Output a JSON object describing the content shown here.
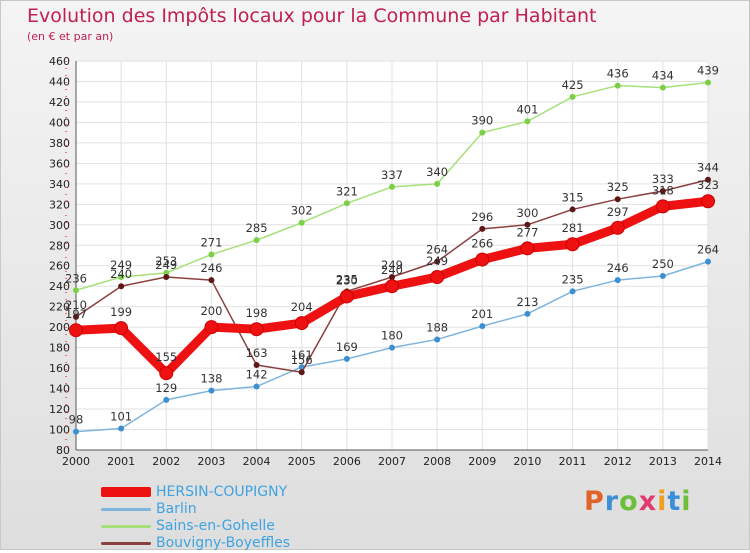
{
  "chart_data": {
    "type": "line",
    "title": "Evolution des Impôts locaux pour la Commune par Habitant",
    "subtitle": "(en € et par an)",
    "categories": [
      "2000",
      "2001",
      "2002",
      "2003",
      "2004",
      "2005",
      "2006",
      "2007",
      "2008",
      "2009",
      "2010",
      "2011",
      "2012",
      "2013",
      "2014"
    ],
    "y_ticks": [
      80,
      100,
      120,
      140,
      160,
      180,
      200,
      220,
      240,
      260,
      280,
      300,
      320,
      340,
      360,
      380,
      400,
      420,
      440,
      460
    ],
    "ylim": [
      80,
      460
    ],
    "grid": true,
    "series": [
      {
        "name": "HERSIN-COUPIGNY",
        "color": "#ee1111",
        "marker": "#ee1111",
        "values": [
          197,
          199,
          155,
          200,
          198,
          204,
          230,
          240,
          249,
          266,
          277,
          281,
          297,
          318,
          323
        ]
      },
      {
        "name": "Barlin",
        "color": "#7fb4dc",
        "marker": "#3d8fd0",
        "values": [
          98,
          101,
          129,
          138,
          142,
          161,
          169,
          180,
          188,
          201,
          213,
          235,
          246,
          250,
          264
        ]
      },
      {
        "name": "Sains-en-Gohelle",
        "color": "#a6e07a",
        "marker": "#7ccf48",
        "values": [
          236,
          249,
          253,
          271,
          285,
          302,
          321,
          337,
          340,
          390,
          401,
          425,
          436,
          434,
          439
        ]
      },
      {
        "name": "Bouvigny-Boyeffles",
        "color": "#8b4040",
        "marker": "#5e1717",
        "values": [
          210,
          240,
          249,
          246,
          163,
          156,
          235,
          249,
          264,
          296,
          300,
          315,
          325,
          333,
          344
        ]
      }
    ]
  },
  "legend_entries": [
    "HERSIN-COUPIGNY",
    "Barlin",
    "Sains-en-Gohelle",
    "Bouvigny-Boyeffles"
  ],
  "logo": {
    "text": "Proxiti",
    "letters": [
      "P",
      "r",
      "o",
      "x",
      "i",
      "t",
      "i"
    ]
  }
}
